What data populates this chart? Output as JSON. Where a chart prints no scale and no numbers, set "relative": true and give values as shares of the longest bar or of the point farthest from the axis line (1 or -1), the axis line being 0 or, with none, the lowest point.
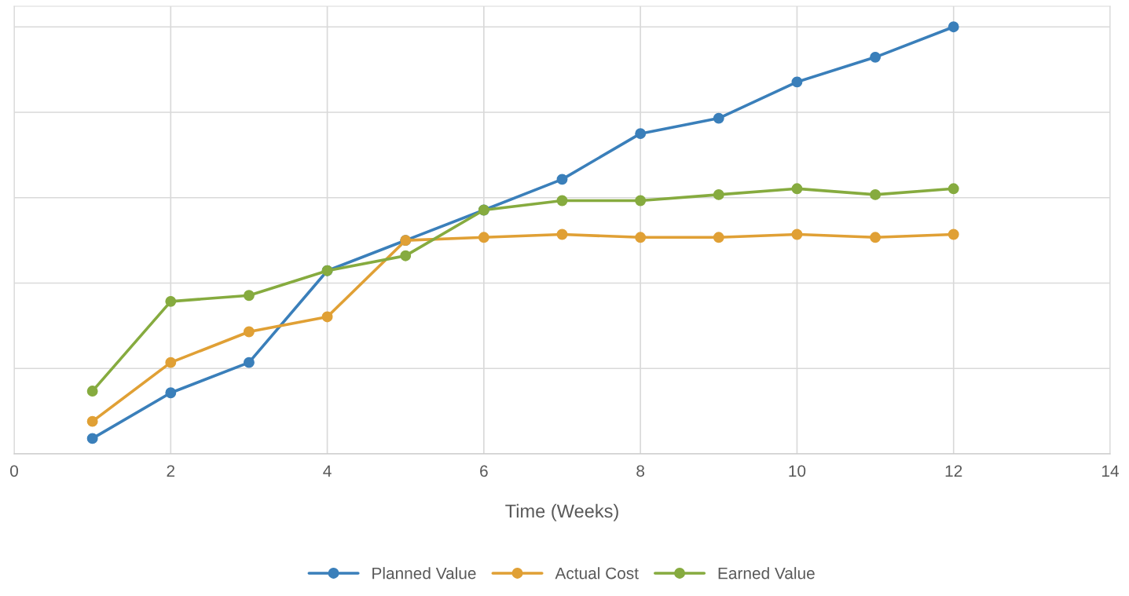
{
  "chart_data": {
    "type": "line",
    "xlabel": "Time (Weeks)",
    "relative": true,
    "x": [
      1,
      2,
      3,
      4,
      5,
      6,
      7,
      8,
      9,
      10,
      11,
      12
    ],
    "xlim": [
      0,
      14
    ],
    "xticks": [
      0,
      2,
      4,
      6,
      8,
      10,
      12,
      14
    ],
    "grid": true,
    "legend": "bottom",
    "marker": "circle",
    "line_style": "solid",
    "series": [
      {
        "name": "Planned Value",
        "color": "#3a7fba",
        "values": [
          0.036,
          0.143,
          0.214,
          0.429,
          0.5,
          0.571,
          0.643,
          0.75,
          0.786,
          0.871,
          0.929,
          1
        ]
      },
      {
        "name": "Actual Cost",
        "color": "#e0a035",
        "values": [
          0.076,
          0.214,
          0.286,
          0.321,
          0.5,
          0.507,
          0.514,
          0.507,
          0.507,
          0.514,
          0.507,
          0.514
        ]
      },
      {
        "name": "Earned Value",
        "color": "#86ab3f",
        "values": [
          0.147,
          0.357,
          0.371,
          0.429,
          0.464,
          0.571,
          0.593,
          0.593,
          0.607,
          0.621,
          0.607,
          0.621
        ]
      }
    ]
  }
}
